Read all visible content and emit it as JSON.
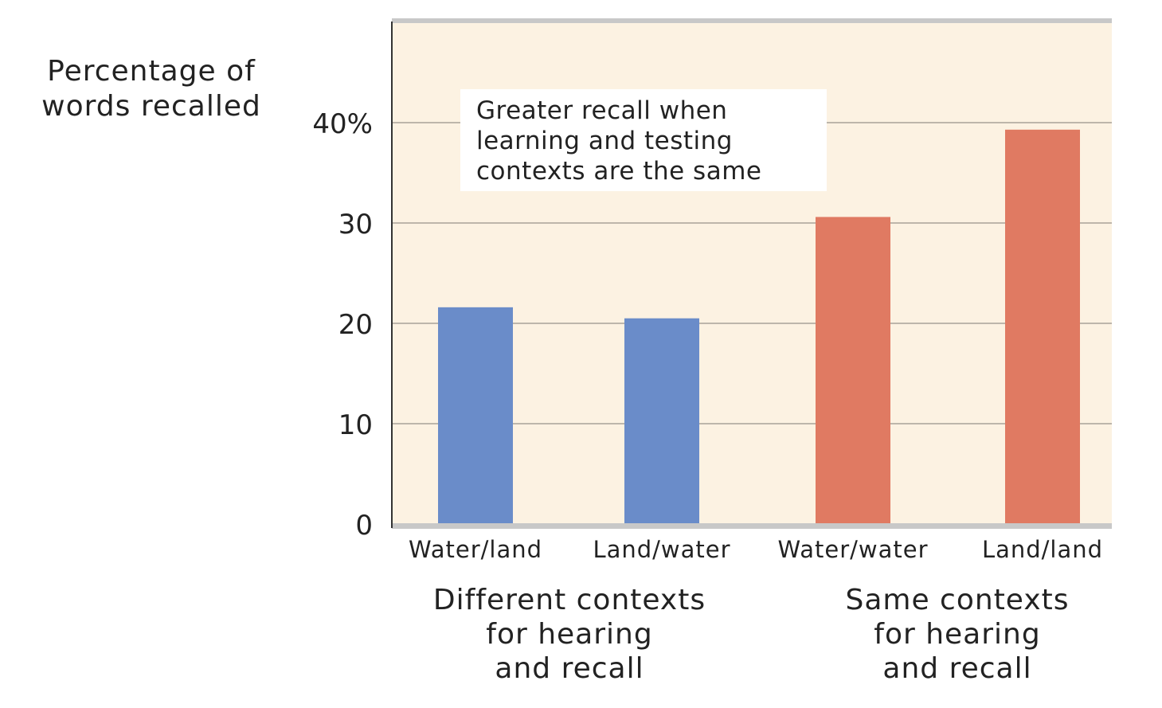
{
  "chart_data": {
    "type": "bar",
    "ylabel": "Percentage of words recalled",
    "categories": [
      "Water/land",
      "Land/water",
      "Water/water",
      "Land/land"
    ],
    "values": [
      21.6,
      20.5,
      30.6,
      39.3
    ],
    "bar_colors": [
      "#6a8cc9",
      "#6a8cc9",
      "#e07a62",
      "#e07a62"
    ],
    "ylim": [
      0,
      50
    ],
    "yticks": [
      0,
      10,
      20,
      30,
      40
    ],
    "ytick_labels": [
      "0",
      "10",
      "20",
      "30",
      "40%"
    ],
    "grid": true,
    "background": "#fcf2e2",
    "groups": [
      {
        "label_lines": [
          "Different contexts",
          "for hearing",
          "and recall"
        ]
      },
      {
        "label_lines": [
          "Same contexts",
          "for hearing",
          "and recall"
        ]
      }
    ],
    "annotation_lines": [
      "Greater recall when",
      "learning and testing",
      "contexts are the same"
    ]
  }
}
